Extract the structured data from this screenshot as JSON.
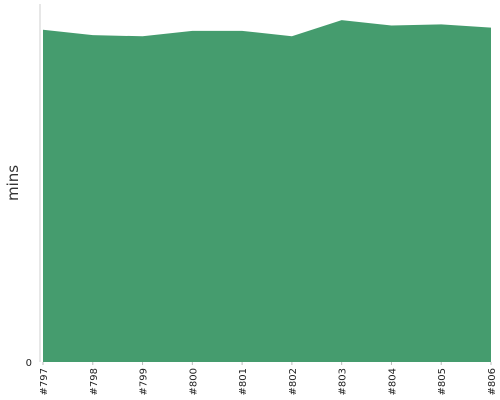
{
  "chart_data": {
    "type": "area",
    "title": "",
    "xlabel": "",
    "ylabel": "mins",
    "categories": [
      "#797",
      "#798",
      "#799",
      "#800",
      "#801",
      "#802",
      "#803",
      "#804",
      "#805",
      "#806"
    ],
    "series": [
      {
        "values": [
          30.9,
          30.4,
          30.3,
          30.8,
          30.8,
          30.3,
          31.8,
          31.3,
          31.4,
          31.1
        ]
      }
    ],
    "ylim": [
      0,
      33.3
    ],
    "yticks": [
      "0"
    ],
    "grid": false,
    "legend": "none",
    "fill_color": "#459c6e"
  }
}
